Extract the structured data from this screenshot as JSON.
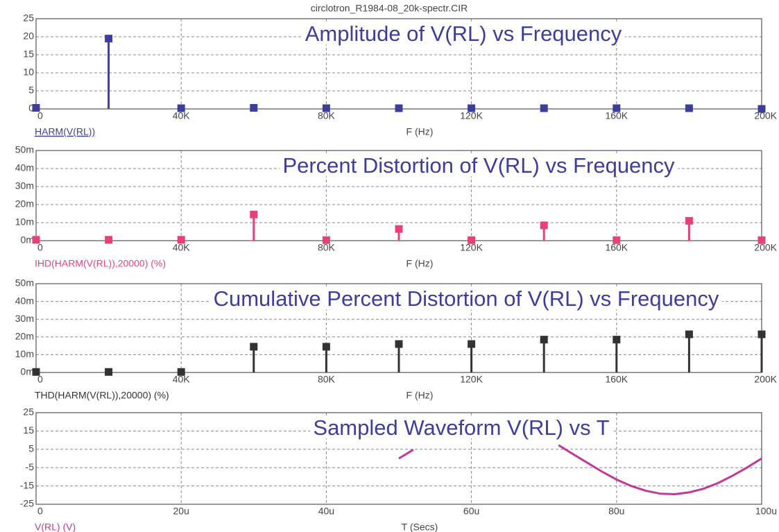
{
  "window_title": "circlotron_R1984-08_20k-spectr.CIR",
  "chart_data": [
    {
      "type": "stem",
      "title": "Amplitude of V(RL) vs Frequency",
      "xlabel": "F (Hz)",
      "x": [
        0,
        20000,
        40000,
        60000,
        80000,
        100000,
        120000,
        140000,
        160000,
        180000,
        200000
      ],
      "series": [
        {
          "name": "HARM(V(RL))",
          "color": "#3d3d9c",
          "values": [
            0.3,
            19.5,
            0.2,
            0.3,
            0.2,
            0.2,
            0.2,
            0.2,
            0.2,
            0.2,
            0
          ]
        }
      ],
      "xlim": [
        0,
        200000
      ],
      "xticks": [
        0,
        {
          "value": 40000,
          "label": "40K"
        },
        {
          "value": 80000,
          "label": "80K"
        },
        {
          "value": 120000,
          "label": "120K"
        },
        {
          "value": 160000,
          "label": "160K"
        },
        {
          "value": 200000,
          "label": "200K"
        }
      ],
      "ylim": [
        0,
        25
      ],
      "yticks": [
        0,
        5,
        10,
        15,
        20,
        25
      ],
      "grid": true
    },
    {
      "type": "stem",
      "title": "Percent Distortion of V(RL) vs Frequency",
      "xlabel": "F (Hz)",
      "x": [
        0,
        20000,
        40000,
        60000,
        80000,
        100000,
        120000,
        140000,
        160000,
        180000,
        200000
      ],
      "series": [
        {
          "name": "IHD(HARM(V(RL)),20000) (%)",
          "color": "#e8407a",
          "values": [
            0.0005,
            0.0005,
            0.0005,
            0.0145,
            0.0003,
            0.0065,
            0.0003,
            0.0085,
            0.0003,
            0.011,
            0.0003
          ]
        }
      ],
      "xlim": [
        0,
        200000
      ],
      "xticks": [
        0,
        {
          "value": 40000,
          "label": "40K"
        },
        {
          "value": 80000,
          "label": "80K"
        },
        {
          "value": 120000,
          "label": "120K"
        },
        {
          "value": 160000,
          "label": "160K"
        },
        {
          "value": 200000,
          "label": "200K"
        }
      ],
      "ylim": [
        0,
        0.05
      ],
      "yticks": [
        {
          "value": 0,
          "label": "0m"
        },
        {
          "value": 0.01,
          "label": "10m"
        },
        {
          "value": 0.02,
          "label": "20m"
        },
        {
          "value": 0.03,
          "label": "30m"
        },
        {
          "value": 0.04,
          "label": "40m"
        },
        {
          "value": 0.05,
          "label": "50m"
        }
      ],
      "grid": true
    },
    {
      "type": "stem",
      "title": "Cumulative Percent Distortion of V(RL) vs Frequency",
      "xlabel": "F (Hz)",
      "x": [
        0,
        20000,
        40000,
        60000,
        80000,
        100000,
        120000,
        140000,
        160000,
        180000,
        200000
      ],
      "series": [
        {
          "name": "THD(HARM(V(RL)),20000) (%)",
          "color": "#333333",
          "values": [
            0.0003,
            0.0003,
            0.0003,
            0.0145,
            0.0145,
            0.016,
            0.016,
            0.0185,
            0.0185,
            0.0215,
            0.0215
          ]
        }
      ],
      "xlim": [
        0,
        200000
      ],
      "xticks": [
        0,
        {
          "value": 40000,
          "label": "40K"
        },
        {
          "value": 80000,
          "label": "80K"
        },
        {
          "value": 120000,
          "label": "120K"
        },
        {
          "value": 160000,
          "label": "160K"
        },
        {
          "value": 200000,
          "label": "200K"
        }
      ],
      "ylim": [
        0,
        0.05
      ],
      "yticks": [
        {
          "value": 0,
          "label": "0m"
        },
        {
          "value": 0.01,
          "label": "10m"
        },
        {
          "value": 0.02,
          "label": "20m"
        },
        {
          "value": 0.03,
          "label": "30m"
        },
        {
          "value": 0.04,
          "label": "40m"
        },
        {
          "value": 0.05,
          "label": "50m"
        }
      ],
      "grid": true
    },
    {
      "type": "line",
      "title": "Sampled Waveform  V(RL) vs T",
      "xlabel": "T (Secs)",
      "x": [
        5e-05,
        5.1e-05,
        5.2e-05,
        6e-05,
        7.2e-05,
        7.4e-05,
        7.6e-05,
        7.8e-05,
        8e-05,
        8.2e-05,
        8.4e-05,
        8.6e-05,
        8.8e-05,
        9e-05,
        9.2e-05,
        9.4e-05,
        9.6e-05,
        9.8e-05,
        0.0001
      ],
      "series": [
        {
          "name": "V(RL) (V)",
          "color": "#c0399a",
          "values": [
            0,
            2.4,
            4.8,
            null,
            7.3,
            2.4,
            -2.4,
            -7.2,
            -11.5,
            -15.0,
            -17.6,
            -19.2,
            -19.5,
            -18.5,
            -16.5,
            -13.4,
            -9.4,
            -4.9,
            0
          ]
        }
      ],
      "xlim": [
        0,
        0.0001
      ],
      "xticks": [
        0,
        {
          "value": 2e-05,
          "label": "20u"
        },
        {
          "value": 4e-05,
          "label": "40u"
        },
        {
          "value": 6e-05,
          "label": "60u"
        },
        {
          "value": 8e-05,
          "label": "80u"
        },
        {
          "value": 0.0001,
          "label": "100u"
        }
      ],
      "ylim": [
        -25,
        25
      ],
      "yticks": [
        -25,
        -15,
        -5,
        5,
        15,
        25
      ],
      "grid": true
    }
  ]
}
